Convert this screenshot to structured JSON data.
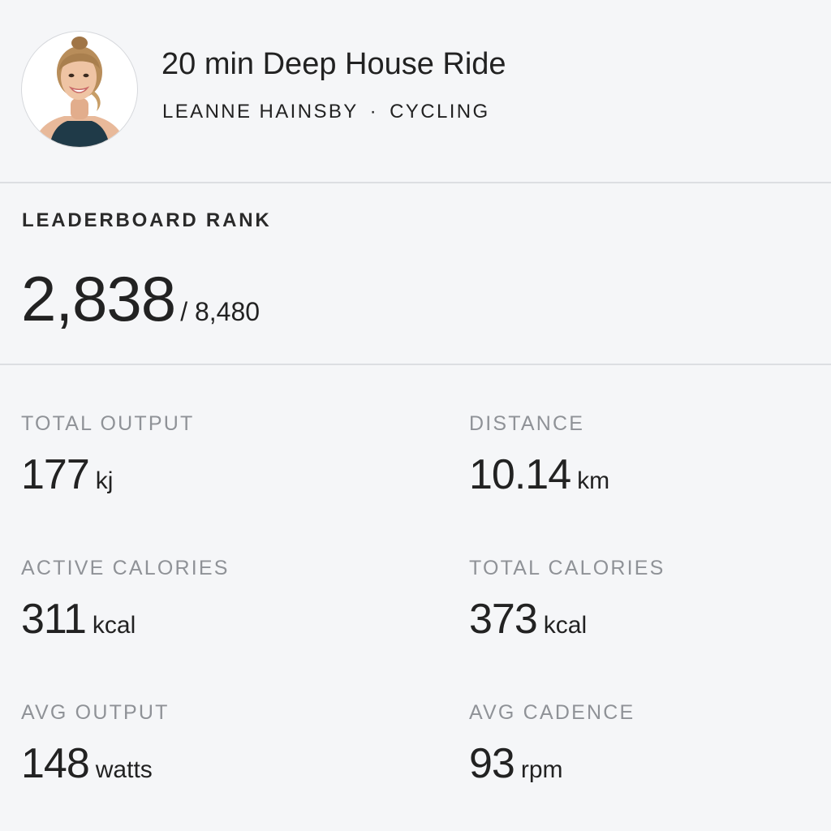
{
  "class": {
    "title": "20 min Deep House Ride",
    "instructor": "LEANNE HAINSBY",
    "separator": "·",
    "discipline": "CYCLING"
  },
  "icons": {
    "avatar": "instructor-avatar"
  },
  "leaderboard": {
    "label": "LEADERBOARD RANK",
    "rank": "2,838",
    "total": "/ 8,480"
  },
  "metrics": [
    {
      "label": "TOTAL OUTPUT",
      "value": "177",
      "unit": "kj"
    },
    {
      "label": "DISTANCE",
      "value": "10.14",
      "unit": "km"
    },
    {
      "label": "ACTIVE CALORIES",
      "value": "311",
      "unit": "kcal"
    },
    {
      "label": "TOTAL CALORIES",
      "value": "373",
      "unit": "kcal"
    },
    {
      "label": "AVG OUTPUT",
      "value": "148",
      "unit": "watts"
    },
    {
      "label": "AVG CADENCE",
      "value": "93",
      "unit": "rpm"
    }
  ],
  "colors": {
    "background": "#f5f6f8",
    "text": "#222222",
    "muted_label": "#8f9297",
    "divider": "#dcdee2"
  }
}
